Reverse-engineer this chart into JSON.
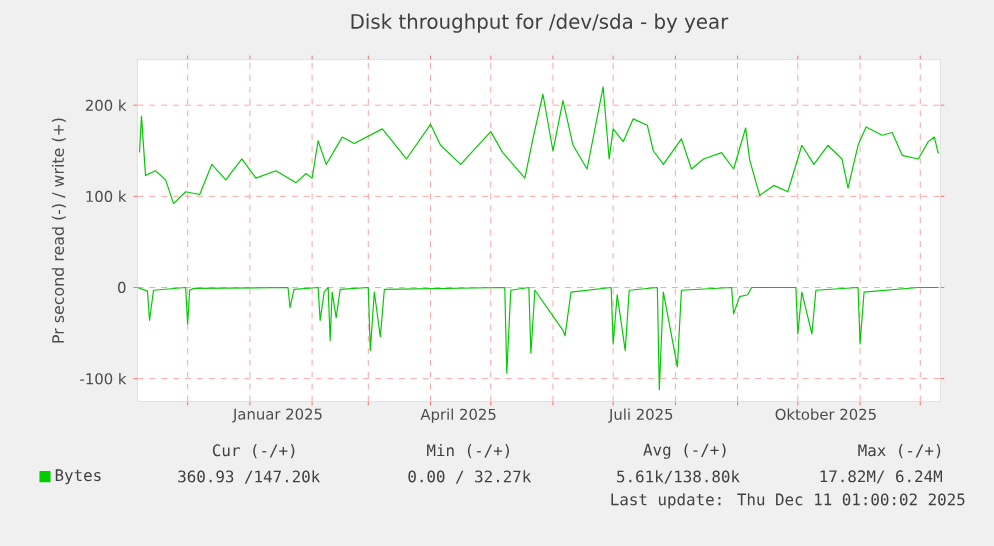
{
  "chart_data": {
    "type": "line",
    "title": "Disk throughput for /dev/sda - by year",
    "ylabel": "Pr second read (-) / write (+)",
    "xlim": [
      "2024-11-06",
      "2025-12-11"
    ],
    "ylim": [
      -125000,
      250000
    ],
    "xticks": [
      {
        "value": "2024-12-01",
        "label": null
      },
      {
        "value": "2025-01-01",
        "label": null
      },
      {
        "value": "2025-01-15",
        "label": "Januar 2025"
      },
      {
        "value": "2025-02-01",
        "label": null
      },
      {
        "value": "2025-03-01",
        "label": null
      },
      {
        "value": "2025-04-01",
        "label": null
      },
      {
        "value": "2025-04-15",
        "label": "April 2025"
      },
      {
        "value": "2025-05-01",
        "label": null
      },
      {
        "value": "2025-06-01",
        "label": null
      },
      {
        "value": "2025-07-01",
        "label": null
      },
      {
        "value": "2025-07-15",
        "label": "Juli 2025"
      },
      {
        "value": "2025-08-01",
        "label": null
      },
      {
        "value": "2025-09-01",
        "label": null
      },
      {
        "value": "2025-10-01",
        "label": null
      },
      {
        "value": "2025-10-15",
        "label": "Oktober 2025"
      },
      {
        "value": "2025-11-01",
        "label": null
      },
      {
        "value": "2025-12-01",
        "label": null
      }
    ],
    "yticks": [
      {
        "value": -100000,
        "label": "-100 k"
      },
      0,
      {
        "value": 100000,
        "label": "100 k"
      },
      {
        "value": 200000,
        "label": "200 k"
      }
    ],
    "grid": true,
    "legend": "bottom left",
    "series": [
      {
        "name": "Bytes",
        "color": "#00cc00",
        "x": [
          "2024-11-07",
          "2024-11-08",
          "2024-11-10",
          "2024-11-15",
          "2024-11-20",
          "2024-11-24",
          "2024-11-30",
          "2024-12-07",
          "2024-12-13",
          "2024-12-20",
          "2024-12-28",
          "2025-01-04",
          "2025-01-14",
          "2025-01-24",
          "2025-01-29",
          "2025-02-01",
          "2025-02-04",
          "2025-02-08",
          "2025-02-16",
          "2025-02-22",
          "2025-03-08",
          "2025-03-20",
          "2025-04-01",
          "2025-04-06",
          "2025-04-16",
          "2025-05-01",
          "2025-05-07",
          "2025-05-18",
          "2025-05-22",
          "2025-05-27",
          "2025-06-01",
          "2025-06-06",
          "2025-06-11",
          "2025-06-18",
          "2025-06-26",
          "2025-06-29",
          "2025-07-01",
          "2025-07-06",
          "2025-07-11",
          "2025-07-18",
          "2025-07-21",
          "2025-07-26",
          "2025-08-04",
          "2025-08-09",
          "2025-08-15",
          "2025-08-24",
          "2025-08-30",
          "2025-09-05",
          "2025-09-07",
          "2025-09-12",
          "2025-09-19",
          "2025-09-26",
          "2025-10-03",
          "2025-10-09",
          "2025-10-16",
          "2025-10-23",
          "2025-10-26",
          "2025-10-31",
          "2025-11-04",
          "2025-11-12",
          "2025-11-17",
          "2025-11-22",
          "2025-11-30",
          "2025-12-05",
          "2025-12-08",
          "2025-12-10"
        ],
        "values": [
          148000,
          188000,
          123000,
          128000,
          118000,
          92000,
          105000,
          102000,
          135000,
          118000,
          141000,
          120000,
          128000,
          115000,
          125000,
          120000,
          161000,
          135000,
          165000,
          158000,
          174000,
          141000,
          179000,
          156000,
          135000,
          171000,
          148000,
          120000,
          163000,
          212000,
          150000,
          205000,
          156000,
          130000,
          220000,
          141000,
          174000,
          160000,
          185000,
          178000,
          150000,
          135000,
          163000,
          130000,
          141000,
          148000,
          130000,
          175000,
          140000,
          101000,
          112000,
          105000,
          156000,
          135000,
          156000,
          141000,
          109000,
          156000,
          176000,
          167000,
          170000,
          145000,
          141000,
          160000,
          165000,
          147000
        ]
      },
      {
        "color": "#00cc00",
        "x": [
          "2024-11-06",
          "2024-11-11",
          "2024-11-12",
          "2024-11-14",
          "2024-11-30",
          "2024-12-01",
          "2024-12-02",
          "2024-12-04",
          "2025-01-20",
          "2025-01-21",
          "2025-01-23",
          "2025-02-04",
          "2025-02-05",
          "2025-02-07",
          "2025-02-09",
          "2025-02-10",
          "2025-02-11",
          "2025-02-13",
          "2025-02-15",
          "2025-03-01",
          "2025-03-02",
          "2025-03-04",
          "2025-03-07",
          "2025-03-09",
          "2025-05-08",
          "2025-05-09",
          "2025-05-11",
          "2025-05-20",
          "2025-05-21",
          "2025-05-23",
          "2025-06-06",
          "2025-06-07",
          "2025-06-10",
          "2025-06-30",
          "2025-07-01",
          "2025-07-03",
          "2025-07-07",
          "2025-07-09",
          "2025-07-23",
          "2025-07-24",
          "2025-07-26",
          "2025-08-02",
          "2025-08-04",
          "2025-08-29",
          "2025-08-30",
          "2025-09-02",
          "2025-09-06",
          "2025-09-08",
          "2025-09-30",
          "2025-10-01",
          "2025-10-03",
          "2025-10-08",
          "2025-10-10",
          "2025-10-31",
          "2025-11-01",
          "2025-11-03",
          "2025-11-30",
          "2025-12-10"
        ],
        "values": [
          0,
          -4000,
          -36000,
          -3000,
          0,
          -40000,
          -3000,
          -1000,
          0,
          -22000,
          -2000,
          0,
          -36000,
          -5000,
          0,
          -58000,
          -5000,
          -33000,
          -2000,
          0,
          -69000,
          -5000,
          -54000,
          -2000,
          0,
          -94000,
          -3000,
          0,
          -72000,
          -3000,
          -47000,
          -53000,
          -5000,
          0,
          -62000,
          -8000,
          -69000,
          -3000,
          0,
          -112000,
          -5000,
          -87000,
          -3000,
          0,
          -29000,
          -10000,
          -8000,
          0,
          0,
          -51000,
          -5000,
          -51000,
          -3000,
          0,
          -62000,
          -5000,
          0,
          0
        ]
      }
    ],
    "annotations": [
      "Cur (-/+)",
      "Min (-/+)",
      "Avg (-/+)",
      "Max (-/+)",
      "360.93 /147.20k",
      "0.00 / 32.27k",
      "5.61k/138.80k",
      "17.82M/  6.24M",
      "Last update: Thu Dec 11 01:00:02 2025"
    ]
  }
}
